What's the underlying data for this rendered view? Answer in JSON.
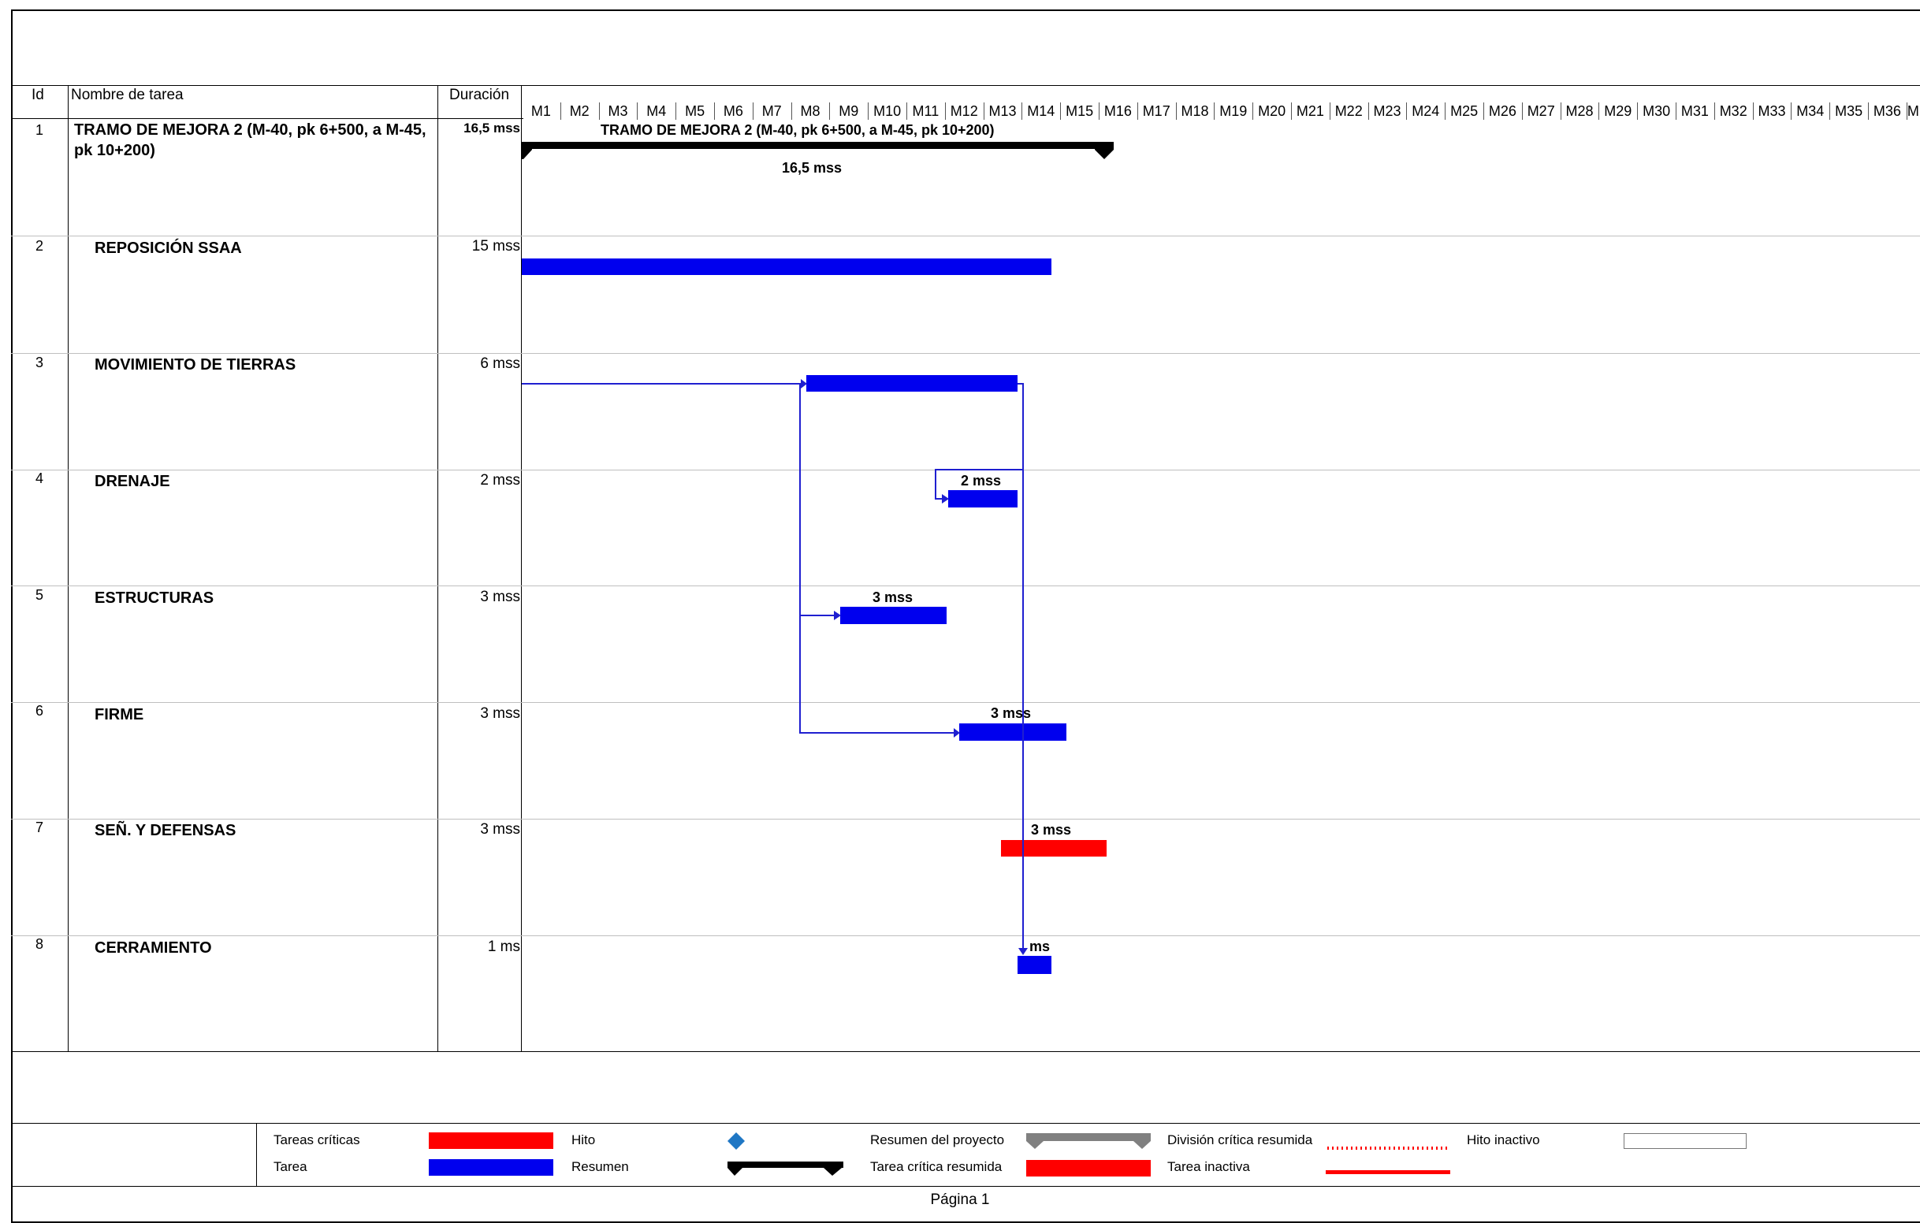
{
  "table": {
    "headers": {
      "id": "Id",
      "name": "Nombre de tarea",
      "duration": "Duración"
    },
    "tasks": [
      {
        "id": "1",
        "name": "TRAMO DE MEJORA 2 (M-40, pk 6+500, a M-45, pk 10+200)",
        "duration": "16,5 mss"
      },
      {
        "id": "2",
        "name": "REPOSICIÓN SSAA",
        "duration": "15 mss"
      },
      {
        "id": "3",
        "name": "MOVIMIENTO DE TIERRAS",
        "duration": "6 mss"
      },
      {
        "id": "4",
        "name": "DRENAJE",
        "duration": "2 mss"
      },
      {
        "id": "5",
        "name": "ESTRUCTURAS",
        "duration": "3 mss"
      },
      {
        "id": "6",
        "name": "FIRME",
        "duration": "3 mss"
      },
      {
        "id": "7",
        "name": "SEÑ. Y DEFENSAS",
        "duration": "3 mss"
      },
      {
        "id": "8",
        "name": "CERRAMIENTO",
        "duration": "1 ms"
      }
    ]
  },
  "timeline": {
    "months": [
      "M1",
      "M2",
      "M3",
      "M4",
      "M5",
      "M6",
      "M7",
      "M8",
      "M9",
      "M10",
      "M11",
      "M12",
      "M13",
      "M14",
      "M15",
      "M16",
      "M17",
      "M18",
      "M19",
      "M20",
      "M21",
      "M22",
      "M23",
      "M24",
      "M25",
      "M26",
      "M27",
      "M28",
      "M29",
      "M30",
      "M31",
      "M32",
      "M33",
      "M34",
      "M35",
      "M36",
      "M"
    ]
  },
  "bars": {
    "summary_title": "TRAMO DE MEJORA 2 (M-40, pk 6+500, a M-45, pk 10+200)",
    "summary_label": "16,5 mss",
    "label_drenaje": "2 mss",
    "label_estructuras": "3 mss",
    "label_firme": "3 mss",
    "label_senales": "3 mss",
    "label_cerramiento": "ms",
    "task_color": "#0000ee",
    "critical_color": "#ff0000",
    "summary_color": "#000000",
    "link_color": "#1f1fd0"
  },
  "legend": {
    "tareas_criticas": "Tareas críticas",
    "tarea": "Tarea",
    "hito": "Hito",
    "resumen": "Resumen",
    "resumen_proyecto": "Resumen del proyecto",
    "tarea_critica_resumida": "Tarea crítica resumida",
    "division_critica_resumida": "División crítica resumida",
    "tarea_inactiva": "Tarea inactiva",
    "hito_inactivo": "Hito inactivo",
    "hito_color": "#1f77c4",
    "project_summary_color": "#808080"
  },
  "footer": {
    "page": "Página 1"
  }
}
